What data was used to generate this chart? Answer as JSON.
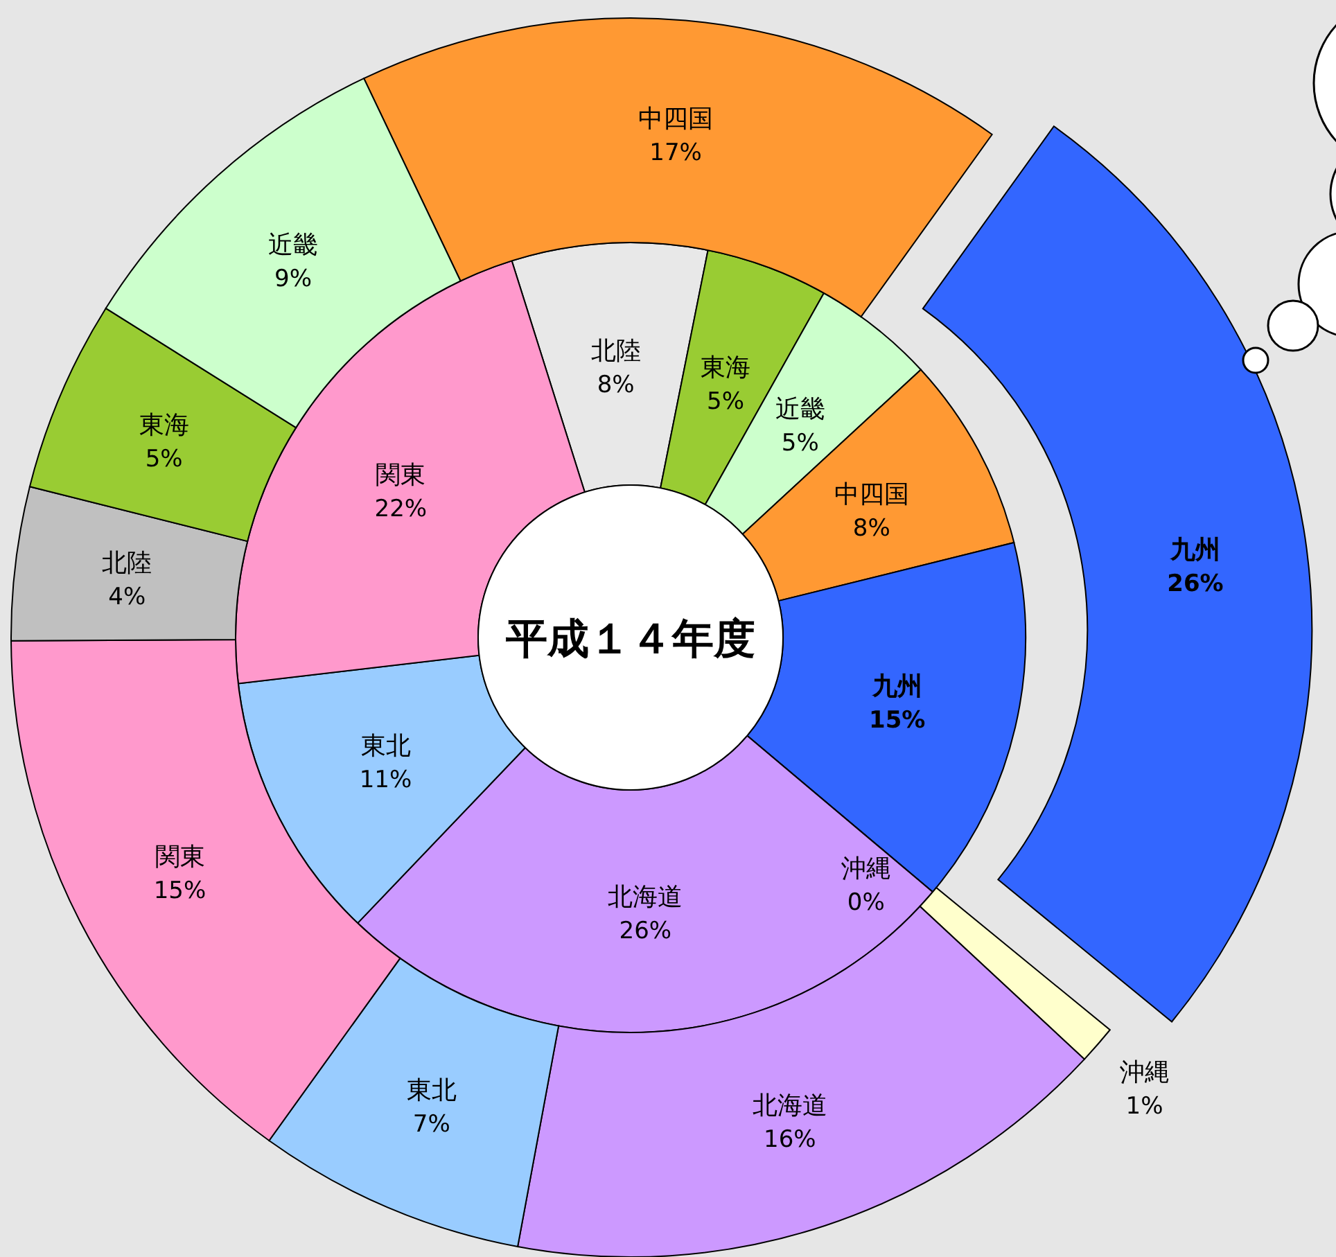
{
  "chart_data": [
    {
      "type": "donut",
      "title": "平成１４年度",
      "categories": [
        "北陸",
        "東海",
        "近畿",
        "中四国",
        "九州",
        "沖縄",
        "北海道",
        "東北",
        "関東"
      ],
      "values": [
        8,
        5,
        5,
        8,
        15,
        0,
        26,
        11,
        22
      ],
      "value_labels": [
        "8%",
        "5%",
        "5%",
        "8%",
        "15%",
        "0%",
        "26%",
        "11%",
        "22%"
      ],
      "colors": [
        "#e8e8e8",
        "#99cc33",
        "#ccffcc",
        "#ff9933",
        "#3366ff",
        "#ffffcc",
        "#cc99ff",
        "#99ccff",
        "#ff99cc"
      ]
    },
    {
      "type": "donut",
      "categories": [
        "中四国",
        "九州",
        "沖縄",
        "北海道",
        "東北",
        "関東",
        "北陸",
        "東海",
        "近畿"
      ],
      "values": [
        17,
        26,
        1,
        16,
        7,
        15,
        4,
        5,
        9
      ],
      "value_labels": [
        "17%",
        "26%",
        "1%",
        "16%",
        "7%",
        "15%",
        "4%",
        "5%",
        "9%"
      ],
      "colors": [
        "#ff9933",
        "#3366ff",
        "#ffffcc",
        "#cc99ff",
        "#99ccff",
        "#ff99cc",
        "#c0c0c0",
        "#99cc33",
        "#ccffcc"
      ]
    }
  ]
}
